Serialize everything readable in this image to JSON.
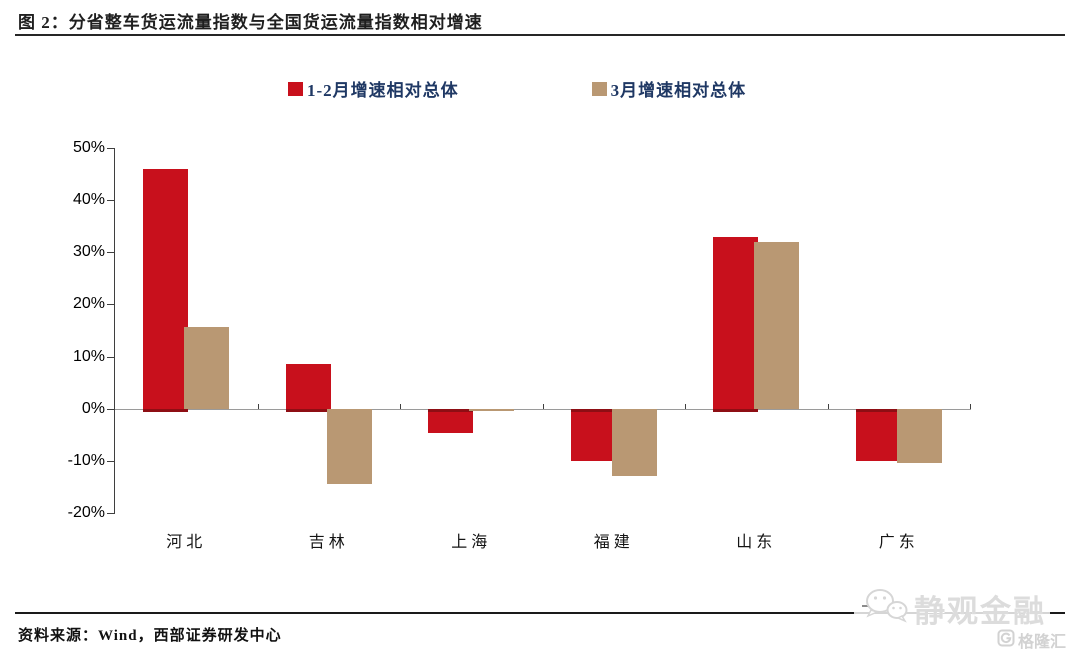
{
  "title": "图 2：分省整车货运流量指数与全国货运流量指数相对增速",
  "legend": [
    {
      "label": "1-2月增速相对总体",
      "color": "#C8101C"
    },
    {
      "label": "3月增速相对总体",
      "color": "#B99873"
    }
  ],
  "chart_data": {
    "type": "bar",
    "title": "分省整车货运流量指数与全国货运流量指数相对增速",
    "categories": [
      "河北",
      "吉林",
      "上海",
      "福建",
      "山东",
      "广东"
    ],
    "series": [
      {
        "name": "1-2月增速相对总体",
        "color": "#C8101C",
        "edge_color": "#8e0e14",
        "values": [
          46,
          8.5,
          -4,
          -9.5,
          33,
          -9.5
        ]
      },
      {
        "name": "3月增速相对总体",
        "color": "#B99873",
        "edge_color": "#9a7c55",
        "values": [
          15.7,
          -14.5,
          -0.5,
          -13,
          32,
          -10.5
        ]
      }
    ],
    "ylim": [
      -20,
      50
    ],
    "ytick_step": 10,
    "ytick_labels": [
      "50%",
      "40%",
      "30%",
      "20%",
      "10%",
      "0%",
      "-10%",
      "-20%"
    ],
    "xlabel": "",
    "ylabel": "",
    "grid": false,
    "legend_position": "top"
  },
  "source_note": "资料来源：Wind，西部证券研发中心",
  "watermark": {
    "account_name": "静观金融",
    "logo_text": "格隆汇",
    "logo_letter": "G"
  },
  "colors": {
    "series1": "#C8101C",
    "series2": "#B99873",
    "legend_text": "#1F3864",
    "axis": "#3f3f3f",
    "zero_line": "#9a9a9a",
    "rule": "#262626",
    "watermark_gray": "#d6d6d6"
  }
}
